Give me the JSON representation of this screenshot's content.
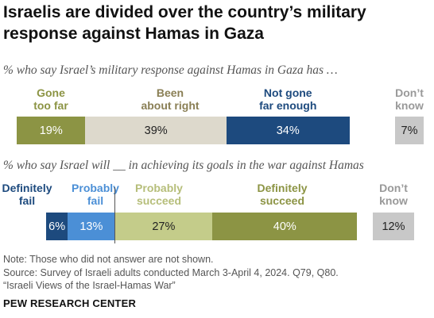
{
  "header": {
    "title": "Israelis are divided over the country’s military response against Hamas in Gaza"
  },
  "chart_data": [
    {
      "type": "bar",
      "subtitle": "% who say Israel’s military response against Hamas in Gaza has …",
      "categories": [
        "Gone too far",
        "Been about right",
        "Not gone far enough",
        "Don’t know"
      ],
      "category_lines": [
        [
          "Gone",
          "too far"
        ],
        [
          "Been",
          "about right"
        ],
        [
          "Not gone",
          "far enough"
        ],
        [
          "Don’t",
          "know"
        ]
      ],
      "values": [
        19,
        39,
        34,
        7
      ],
      "value_labels": [
        "19%",
        "39%",
        "34%",
        "7%"
      ],
      "colors": [
        "#8c9444",
        "#ddd9cc",
        "#1d4a7e",
        "#c8c8c8"
      ],
      "label_colors": [
        "#8c9444",
        "#8a7f55",
        "#1d4a7e",
        "#999999"
      ],
      "text_colors": [
        "#ffffff",
        "#222222",
        "#ffffff",
        "#222222"
      ],
      "orientation": "horizontal-stacked"
    },
    {
      "type": "bar",
      "subtitle": "% who say Israel will __ in achieving its goals in the war against Hamas",
      "categories": [
        "Definitely fail",
        "Probably fail",
        "Probably succeed",
        "Definitely succeed",
        "Don’t know"
      ],
      "category_lines": [
        [
          "Definitely",
          "fail"
        ],
        [
          "Probably",
          "fail"
        ],
        [
          "Probably",
          "succeed"
        ],
        [
          "Definitely",
          "succeed"
        ],
        [
          "Don’t",
          "know"
        ]
      ],
      "values": [
        6,
        13,
        27,
        40,
        12
      ],
      "value_labels": [
        "6%",
        "13%",
        "27%",
        "40%",
        "12%"
      ],
      "colors": [
        "#1d4a7e",
        "#4b8fd6",
        "#c4cc8a",
        "#8c9444",
        "#c8c8c8"
      ],
      "label_colors": [
        "#1d4a7e",
        "#4b8fd6",
        "#b6be7a",
        "#8c9444",
        "#999999"
      ],
      "text_colors": [
        "#ffffff",
        "#ffffff",
        "#222222",
        "#ffffff",
        "#222222"
      ],
      "orientation": "horizontal-stacked-diverging"
    }
  ],
  "footer": {
    "note": "Note: Those who did not answer are not shown.",
    "source_line1": "Source: Survey of Israeli adults conducted March 3-April 4, 2024. Q79, Q80.",
    "source_line2": "“Israeli Views of the Israel-Hamas War”",
    "brand": "PEW RESEARCH CENTER"
  }
}
